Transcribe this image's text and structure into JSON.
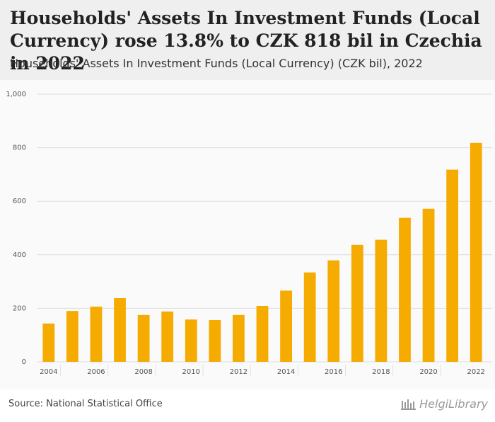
{
  "title": "Households' Assets In Investment Funds (Local Currency) rose 13.8% to CZK 818 bil in Czechia in 2022",
  "subtitle": "Households' Assets In Investment Funds (Local Currency) (CZK bil), 2022",
  "source": "Source: National Statistical Office",
  "brand": "HelgiLibrary",
  "colors": {
    "bar": "#f5ab00",
    "grid": "#dddddd",
    "axis_text": "#555555"
  },
  "chart_data": {
    "type": "bar",
    "title": "Households' Assets In Investment Funds (Local Currency) (CZK bil), 2022",
    "xlabel": "",
    "ylabel": "CZK bil",
    "ylim": [
      0,
      1000
    ],
    "yticks": [
      0,
      200,
      400,
      600,
      800,
      1000
    ],
    "ytick_labels": [
      "0",
      "200",
      "400",
      "600",
      "800",
      "1,000"
    ],
    "categories": [
      "2004",
      "2005",
      "2006",
      "2007",
      "2008",
      "2009",
      "2010",
      "2011",
      "2012",
      "2013",
      "2014",
      "2015",
      "2016",
      "2017",
      "2018",
      "2019",
      "2020",
      "2021",
      "2022"
    ],
    "xtick_labels": [
      "2004",
      "2006",
      "2008",
      "2010",
      "2012",
      "2014",
      "2016",
      "2018",
      "2020",
      "2022"
    ],
    "values": [
      143,
      190,
      206,
      238,
      175,
      188,
      158,
      156,
      175,
      209,
      266,
      334,
      379,
      437,
      456,
      538,
      572,
      718,
      818
    ],
    "grid": true
  }
}
